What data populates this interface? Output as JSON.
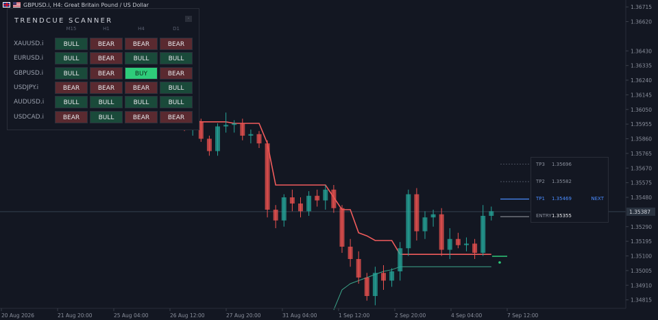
{
  "topbar": {
    "title": "GBPUSD.i, H4:  Great Britain Pound / US Dollar"
  },
  "scanner": {
    "title": "TRENDCUE SCANNER",
    "minimize_label": "-",
    "timeframes": [
      "M15",
      "H1",
      "H4",
      "D1"
    ],
    "rows": [
      {
        "symbol": "XAUUSD.i",
        "signals": [
          "BULL",
          "BEAR",
          "BEAR",
          "BEAR"
        ]
      },
      {
        "symbol": "EURUSD.i",
        "signals": [
          "BULL",
          "BEAR",
          "BULL",
          "BULL"
        ]
      },
      {
        "symbol": "GBPUSD.i",
        "signals": [
          "BULL",
          "BEAR",
          "BUY",
          "BEAR"
        ]
      },
      {
        "symbol": "USDJPY.i",
        "signals": [
          "BEAR",
          "BEAR",
          "BEAR",
          "BULL"
        ]
      },
      {
        "symbol": "AUDUSD.i",
        "signals": [
          "BULL",
          "BULL",
          "BULL",
          "BULL"
        ]
      },
      {
        "symbol": "USDCAD.i",
        "signals": [
          "BEAR",
          "BULL",
          "BEAR",
          "BEAR"
        ]
      }
    ]
  },
  "targets": {
    "tp3_label": "TP3",
    "tp3_value": "1.35696",
    "tp2_label": "TP2",
    "tp2_value": "1.35582",
    "tp1_label": "TP1",
    "tp1_value": "1.35469",
    "next_label": "NEXT",
    "entry_label": "ENTRY",
    "entry_value": "1.35355"
  },
  "price_axis": {
    "ticks": [
      "1.36715",
      "1.36620",
      "1.36430",
      "1.36335",
      "1.36240",
      "1.36145",
      "1.36050",
      "1.35955",
      "1.35860",
      "1.35765",
      "1.35670",
      "1.35575",
      "1.35480",
      "1.35290",
      "1.35195",
      "1.35100",
      "1.35005",
      "1.34910",
      "1.34815"
    ],
    "current_price": "1.35387"
  },
  "time_axis": {
    "ticks": [
      "20 Aug 2026",
      "21 Aug 20:00",
      "25 Aug 04:00",
      "26 Aug 12:00",
      "27 Aug 20:00",
      "31 Aug 04:00",
      "1 Sep 12:00",
      "2 Sep 20:00",
      "4 Sep 04:00",
      "7 Sep 12:00"
    ]
  },
  "colors": {
    "bull": "#26a69a",
    "bear": "#ef5350",
    "upper_band": "#f25c5c",
    "lower_band": "#3ca58a",
    "tp_line": "#4a8cff",
    "price_line": "#5d7a8c"
  },
  "chart_data": {
    "type": "candlestick",
    "symbol": "GBPUSD.i",
    "timeframe": "H4",
    "ylim": [
      1.3476,
      1.3676
    ],
    "candles": [
      {
        "o": 1.3605,
        "h": 1.3612,
        "l": 1.3597,
        "c": 1.36
      },
      {
        "o": 1.36,
        "h": 1.3606,
        "l": 1.3591,
        "c": 1.3594
      },
      {
        "o": 1.3594,
        "h": 1.36,
        "l": 1.3588,
        "c": 1.3597
      },
      {
        "o": 1.3597,
        "h": 1.3599,
        "l": 1.3584,
        "c": 1.3586
      },
      {
        "o": 1.3586,
        "h": 1.3588,
        "l": 1.3575,
        "c": 1.3578
      },
      {
        "o": 1.3578,
        "h": 1.3596,
        "l": 1.3575,
        "c": 1.3594
      },
      {
        "o": 1.3594,
        "h": 1.3603,
        "l": 1.359,
        "c": 1.3595
      },
      {
        "o": 1.3595,
        "h": 1.3598,
        "l": 1.359,
        "c": 1.3596
      },
      {
        "o": 1.3596,
        "h": 1.3599,
        "l": 1.3585,
        "c": 1.3588
      },
      {
        "o": 1.3588,
        "h": 1.3592,
        "l": 1.3583,
        "c": 1.3589
      },
      {
        "o": 1.3589,
        "h": 1.3591,
        "l": 1.358,
        "c": 1.3583
      },
      {
        "o": 1.3583,
        "h": 1.3585,
        "l": 1.3535,
        "c": 1.354
      },
      {
        "o": 1.354,
        "h": 1.3543,
        "l": 1.3528,
        "c": 1.3533
      },
      {
        "o": 1.3533,
        "h": 1.355,
        "l": 1.3529,
        "c": 1.3548
      },
      {
        "o": 1.3548,
        "h": 1.3553,
        "l": 1.3539,
        "c": 1.3544
      },
      {
        "o": 1.3544,
        "h": 1.3548,
        "l": 1.3535,
        "c": 1.3539
      },
      {
        "o": 1.3539,
        "h": 1.3552,
        "l": 1.3536,
        "c": 1.3549
      },
      {
        "o": 1.3549,
        "h": 1.3553,
        "l": 1.3542,
        "c": 1.3546
      },
      {
        "o": 1.3546,
        "h": 1.3556,
        "l": 1.354,
        "c": 1.3553
      },
      {
        "o": 1.3553,
        "h": 1.3556,
        "l": 1.3538,
        "c": 1.3541
      },
      {
        "o": 1.3541,
        "h": 1.3543,
        "l": 1.3512,
        "c": 1.3516
      },
      {
        "o": 1.3516,
        "h": 1.3521,
        "l": 1.3503,
        "c": 1.3508
      },
      {
        "o": 1.3508,
        "h": 1.3513,
        "l": 1.3492,
        "c": 1.3496
      },
      {
        "o": 1.3496,
        "h": 1.3499,
        "l": 1.3481,
        "c": 1.3484
      },
      {
        "o": 1.3484,
        "h": 1.3503,
        "l": 1.3478,
        "c": 1.3499
      },
      {
        "o": 1.3499,
        "h": 1.3504,
        "l": 1.3488,
        "c": 1.3494
      },
      {
        "o": 1.3494,
        "h": 1.3502,
        "l": 1.349,
        "c": 1.35
      },
      {
        "o": 1.35,
        "h": 1.3519,
        "l": 1.3494,
        "c": 1.3515
      },
      {
        "o": 1.3515,
        "h": 1.3553,
        "l": 1.351,
        "c": 1.355
      },
      {
        "o": 1.355,
        "h": 1.3554,
        "l": 1.352,
        "c": 1.3526
      },
      {
        "o": 1.3526,
        "h": 1.3539,
        "l": 1.3521,
        "c": 1.3535
      },
      {
        "o": 1.3535,
        "h": 1.354,
        "l": 1.3529,
        "c": 1.3537
      },
      {
        "o": 1.3537,
        "h": 1.3541,
        "l": 1.351,
        "c": 1.3514
      },
      {
        "o": 1.3514,
        "h": 1.3528,
        "l": 1.3508,
        "c": 1.3521
      },
      {
        "o": 1.3521,
        "h": 1.3525,
        "l": 1.3515,
        "c": 1.3517
      },
      {
        "o": 1.3517,
        "h": 1.3522,
        "l": 1.3513,
        "c": 1.3518
      },
      {
        "o": 1.3518,
        "h": 1.3521,
        "l": 1.3508,
        "c": 1.3512
      },
      {
        "o": 1.3512,
        "h": 1.3543,
        "l": 1.351,
        "c": 1.3536
      },
      {
        "o": 1.3536,
        "h": 1.3542,
        "l": 1.3533,
        "c": 1.3539
      }
    ],
    "upper_band": [
      1.3612,
      1.3605,
      1.3598,
      1.3597,
      1.3597,
      1.3597,
      1.3597,
      1.3596,
      1.3596,
      1.3596,
      1.3596,
      1.3583,
      1.3556,
      1.3556,
      1.3556,
      1.3556,
      1.3556,
      1.3556,
      1.3556,
      1.3548,
      1.354,
      1.354,
      1.3525,
      1.3523,
      1.352,
      1.352,
      1.352,
      1.3511,
      1.3511,
      1.3511,
      1.3511,
      1.3511,
      1.3511,
      1.3511,
      1.3511,
      1.3511,
      1.3511,
      1.3511,
      1.3511
    ],
    "lower_band": [
      null,
      null,
      null,
      null,
      null,
      null,
      null,
      null,
      null,
      null,
      null,
      null,
      null,
      null,
      null,
      null,
      null,
      null,
      null,
      1.3475,
      1.3488,
      1.3492,
      1.3494,
      1.3496,
      1.3498,
      1.35,
      1.3501,
      1.3503,
      1.3503,
      1.3503,
      1.3503,
      1.3503,
      1.3503,
      1.3503,
      1.3503,
      1.3503,
      1.3503,
      1.3503,
      1.3503
    ],
    "levels": {
      "tp3": 1.35696,
      "tp2": 1.35582,
      "tp1": 1.35469,
      "entry": 1.35355,
      "current": 1.35387
    }
  }
}
